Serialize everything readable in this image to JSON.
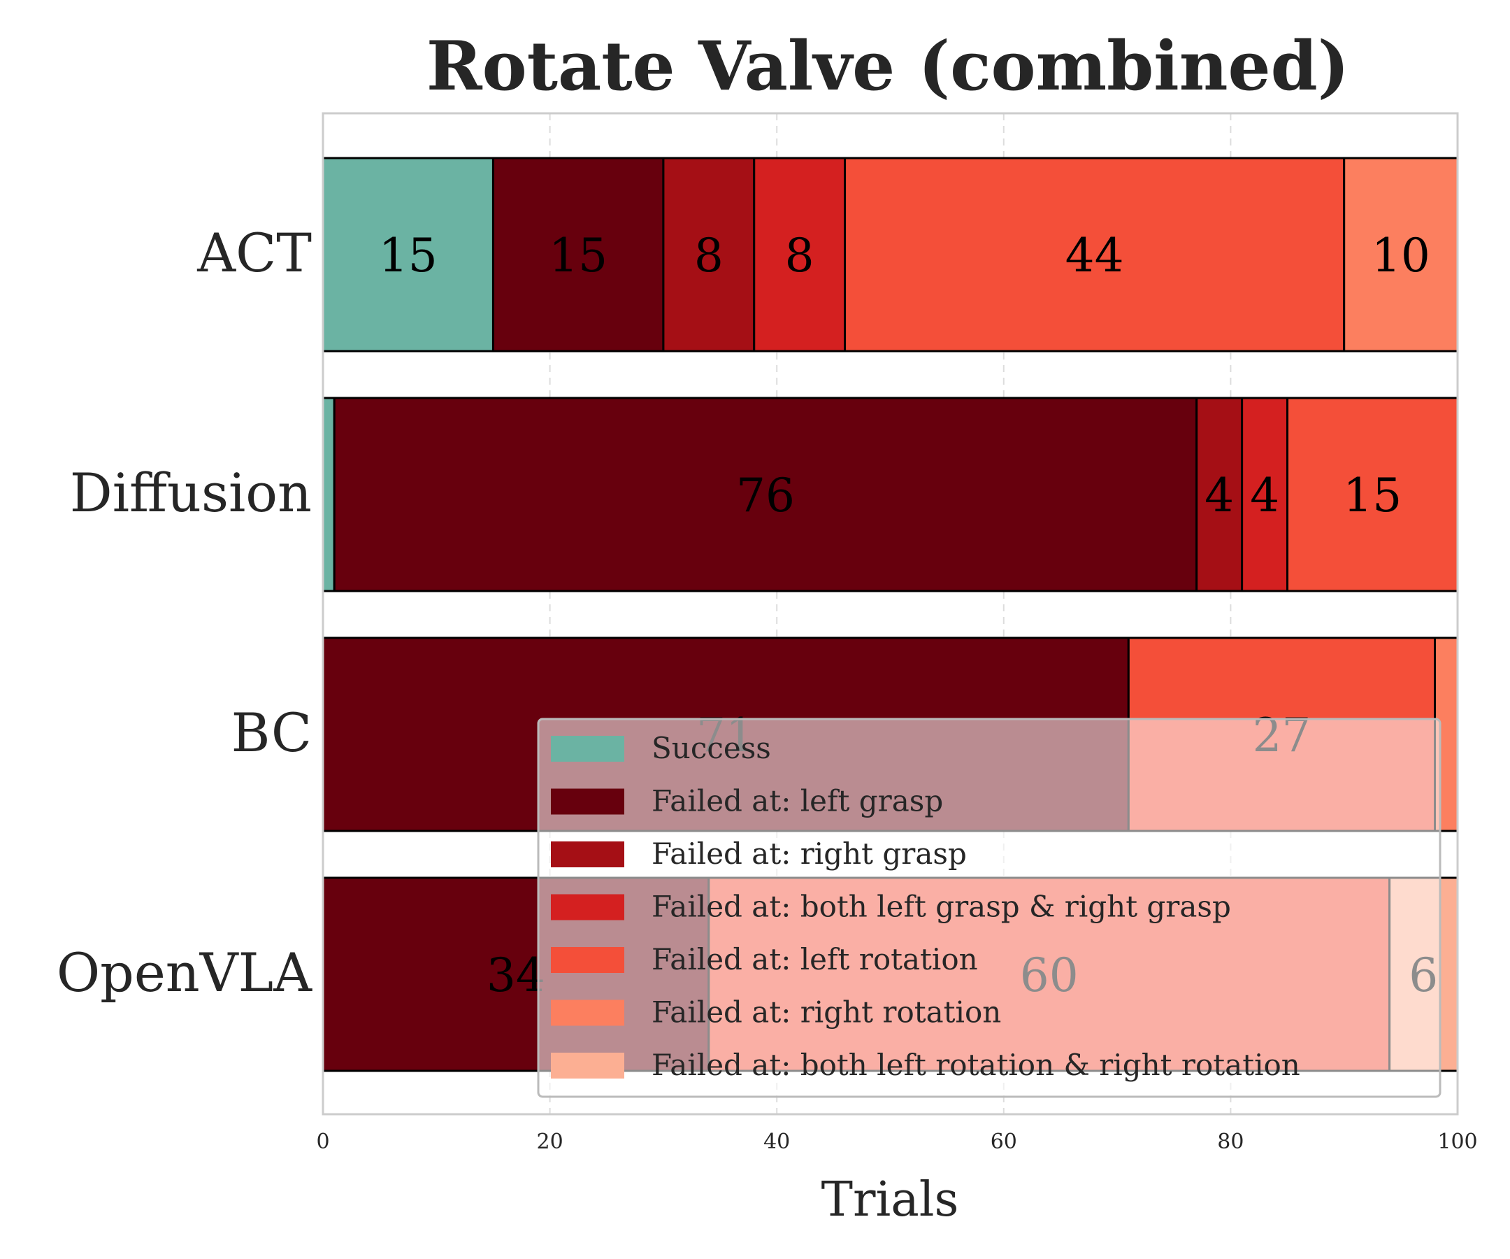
{
  "chart_data": {
    "type": "bar",
    "orientation": "horizontal",
    "stacked": true,
    "title": "Rotate Valve (combined)",
    "xlabel": "Trials",
    "ylabel": "",
    "xlim": [
      0,
      100
    ],
    "xticks": [
      0,
      20,
      40,
      60,
      80,
      100
    ],
    "grid": true,
    "legend_position": "lower-right",
    "categories": [
      "ACT",
      "Diffusion",
      "BC",
      "OpenVLA"
    ],
    "series": [
      {
        "name": "Success",
        "color": "#6bb3a3",
        "values": [
          15,
          1,
          0,
          0
        ]
      },
      {
        "name": "Failed at: left grasp",
        "color": "#67000d",
        "values": [
          15,
          76,
          71,
          34
        ]
      },
      {
        "name": "Failed at: right grasp",
        "color": "#a50f15",
        "values": [
          8,
          4,
          0,
          0
        ]
      },
      {
        "name": "Failed at: both left grasp & right grasp",
        "color": "#d42020",
        "values": [
          8,
          4,
          0,
          0
        ]
      },
      {
        "name": "Failed at: left rotation",
        "color": "#f44f39",
        "values": [
          44,
          15,
          27,
          60
        ]
      },
      {
        "name": "Failed at: right rotation",
        "color": "#fc7f5f",
        "values": [
          10,
          0,
          2,
          0
        ]
      },
      {
        "name": "Failed at: both left rotation & right rotation",
        "color": "#fcaf93",
        "values": [
          0,
          0,
          0,
          6
        ]
      }
    ],
    "bar_labels": [
      [
        "15",
        "15",
        "8",
        "8",
        "44",
        "10",
        ""
      ],
      [
        "",
        "76",
        "4",
        "4",
        "15",
        "",
        ""
      ],
      [
        "",
        "71",
        "",
        "",
        "27",
        "",
        ""
      ],
      [
        "",
        "34",
        "",
        "",
        "60",
        "",
        "6"
      ]
    ]
  }
}
